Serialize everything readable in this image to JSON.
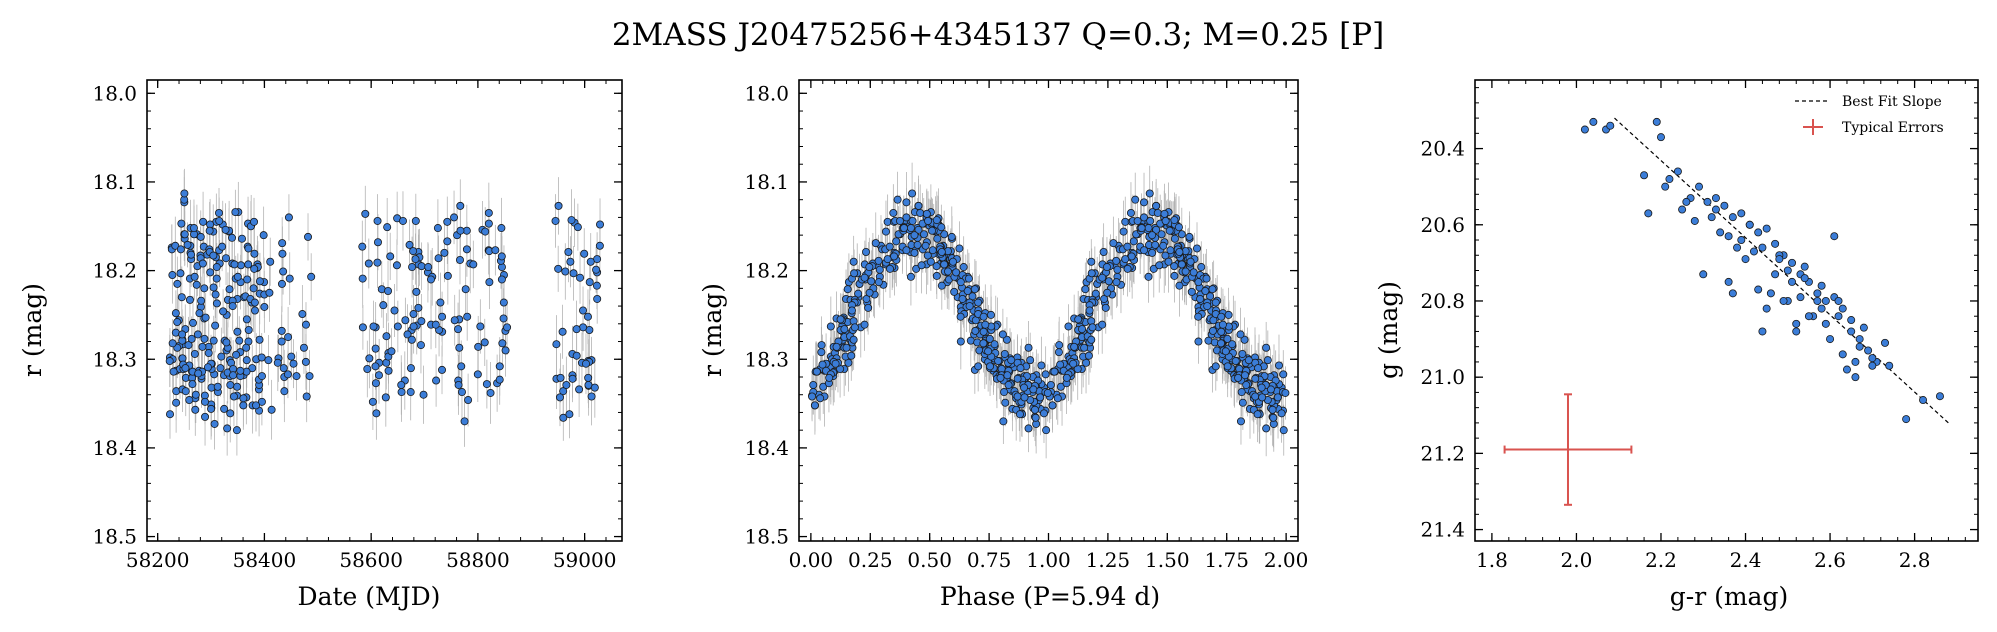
{
  "figure": {
    "title": "2MASS J20475256+4345137  Q=0.3; M=0.25 [P]"
  },
  "chart_data": [
    {
      "type": "scatter",
      "xlabel": "Date (MJD)",
      "ylabel": "r (mag)",
      "xlim": [
        58180,
        59070
      ],
      "ylim": [
        18.505,
        17.985
      ],
      "y_inverted": true,
      "xticks": [
        58200,
        58400,
        58600,
        58800,
        59000
      ],
      "yticks": [
        18.0,
        18.1,
        18.2,
        18.3,
        18.4,
        18.5
      ],
      "xtick_labels": [
        "58200",
        "58400",
        "58600",
        "58800",
        "59000"
      ],
      "ytick_labels": [
        "18.0",
        "18.1",
        "18.2",
        "18.3",
        "18.4",
        "18.5"
      ],
      "grid": false,
      "marker_color": "#3b7dd8",
      "errorbar_color": "#b3b3b3",
      "x": [],
      "y": []
    },
    {
      "type": "scatter",
      "xlabel": "Phase (P=5.94 d)",
      "ylabel": "r (mag)",
      "xlim": [
        -0.05,
        2.05
      ],
      "ylim": [
        18.505,
        17.985
      ],
      "y_inverted": true,
      "xticks": [
        0.0,
        0.25,
        0.5,
        0.75,
        1.0,
        1.25,
        1.5,
        1.75,
        2.0
      ],
      "yticks": [
        18.0,
        18.1,
        18.2,
        18.3,
        18.4,
        18.5
      ],
      "xtick_labels": [
        "0.00",
        "0.25",
        "0.50",
        "0.75",
        "1.00",
        "1.25",
        "1.50",
        "1.75",
        "2.00"
      ],
      "ytick_labels": [
        "18.0",
        "18.1",
        "18.2",
        "18.3",
        "18.4",
        "18.5"
      ],
      "grid": false,
      "marker_color": "#3b7dd8",
      "errorbar_color": "#b3b3b3",
      "x": [],
      "y": []
    },
    {
      "type": "scatter",
      "xlabel": "g-r (mag)",
      "ylabel": "g (mag)",
      "xlim": [
        1.76,
        2.95
      ],
      "ylim": [
        21.43,
        20.22
      ],
      "y_inverted": true,
      "xticks": [
        1.8,
        2.0,
        2.2,
        2.4,
        2.6,
        2.8
      ],
      "yticks": [
        20.4,
        20.6,
        20.8,
        21.0,
        21.2,
        21.4
      ],
      "xtick_labels": [
        "1.8",
        "2.0",
        "2.2",
        "2.4",
        "2.6",
        "2.8"
      ],
      "ytick_labels": [
        "20.4",
        "20.6",
        "20.8",
        "21.0",
        "21.2",
        "21.4"
      ],
      "grid": false,
      "marker_color": "#3b7dd8",
      "legend": {
        "placement": "top-right",
        "entries": [
          "Best Fit Slope",
          "Typical Errors"
        ]
      },
      "best_fit_line": {
        "x": [
          2.09,
          2.88
        ],
        "y": [
          20.32,
          21.12
        ]
      },
      "typical_error": {
        "x": 1.98,
        "y": 21.19,
        "xerr": 0.15,
        "yerr": 0.145,
        "color": "#d9534f"
      },
      "x": [
        2.02,
        2.04,
        2.07,
        2.08,
        2.19,
        2.2,
        2.22,
        2.24,
        2.16,
        2.27,
        2.29,
        2.31,
        2.33,
        2.35,
        2.37,
        2.39,
        2.41,
        2.43,
        2.45,
        2.47,
        2.49,
        2.51,
        2.53,
        2.55,
        2.57,
        2.59,
        2.61,
        2.63,
        2.65,
        2.67,
        2.69,
        2.71,
        2.25,
        2.3,
        2.36,
        2.4,
        2.46,
        2.5,
        2.56,
        2.62,
        2.64,
        2.66,
        2.7,
        2.73,
        2.78,
        2.82,
        2.86,
        2.44,
        2.52,
        2.6,
        2.38,
        2.48,
        2.54,
        2.58,
        2.68,
        2.34,
        2.42,
        2.21,
        2.17,
        2.61,
        2.57,
        2.47,
        2.43,
        2.39,
        2.33,
        2.28,
        2.5,
        2.55,
        2.65,
        2.74,
        2.52,
        2.45,
        2.37,
        2.63,
        2.67,
        2.59,
        2.54,
        2.49,
        2.41,
        2.36,
        2.32,
        2.26,
        2.44,
        2.53,
        2.58,
        2.62,
        2.66,
        2.7,
        2.48,
        2.51
      ],
      "y": [
        20.35,
        20.33,
        20.35,
        20.34,
        20.33,
        20.37,
        20.48,
        20.46,
        20.47,
        20.53,
        20.5,
        20.54,
        20.53,
        20.55,
        20.58,
        20.57,
        20.6,
        20.62,
        20.61,
        20.65,
        20.68,
        20.7,
        20.73,
        20.75,
        20.78,
        20.8,
        20.79,
        20.82,
        20.88,
        20.9,
        20.93,
        20.96,
        20.56,
        20.73,
        20.75,
        20.69,
        20.78,
        20.8,
        20.84,
        20.8,
        20.98,
        21.0,
        20.95,
        20.91,
        21.11,
        21.06,
        21.05,
        20.88,
        20.88,
        20.9,
        20.66,
        20.68,
        20.71,
        20.76,
        20.87,
        20.62,
        20.67,
        20.5,
        20.57,
        20.63,
        20.8,
        20.73,
        20.77,
        20.64,
        20.56,
        20.59,
        20.72,
        20.84,
        20.85,
        20.97,
        20.86,
        20.82,
        20.78,
        20.94,
        20.92,
        20.86,
        20.74,
        20.8,
        20.6,
        20.63,
        20.58,
        20.54,
        20.66,
        20.79,
        20.82,
        20.84,
        20.96,
        20.97,
        20.69,
        20.75
      ]
    }
  ]
}
